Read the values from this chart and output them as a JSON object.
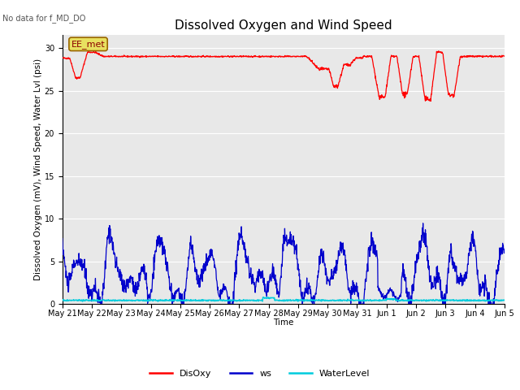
{
  "title": "Dissolved Oxygen and Wind Speed",
  "no_data_text": "No data for f_MD_DO",
  "xlabel": "Time",
  "ylabel": "Dissolved Oxygen (mV), Wind Speed, Water Lvl (psi)",
  "ylim": [
    0,
    31.5
  ],
  "yticks": [
    0,
    5,
    10,
    15,
    20,
    25,
    30
  ],
  "xtick_labels": [
    "May 21",
    "May 22",
    "May 23",
    "May 24",
    "May 25",
    "May 26",
    "May 27",
    "May 28",
    "May 29",
    "May 30",
    "May 31",
    "Jun 1",
    "Jun 2",
    "Jun 3",
    "Jun 4",
    "Jun 5"
  ],
  "title_fontsize": 11,
  "label_fontsize": 7.5,
  "tick_fontsize": 7,
  "bg_color": "#e8e8e8",
  "fig_color": "#ffffff",
  "disoxy_color": "#ff0000",
  "ws_color": "#0000cc",
  "wl_color": "#00ccdd",
  "annotation_text": "EE_met",
  "legend_labels": [
    "DisOxy",
    "ws",
    "WaterLevel"
  ],
  "legend_colors": [
    "#ff0000",
    "#0000cc",
    "#00ccdd"
  ],
  "n_days": 15
}
